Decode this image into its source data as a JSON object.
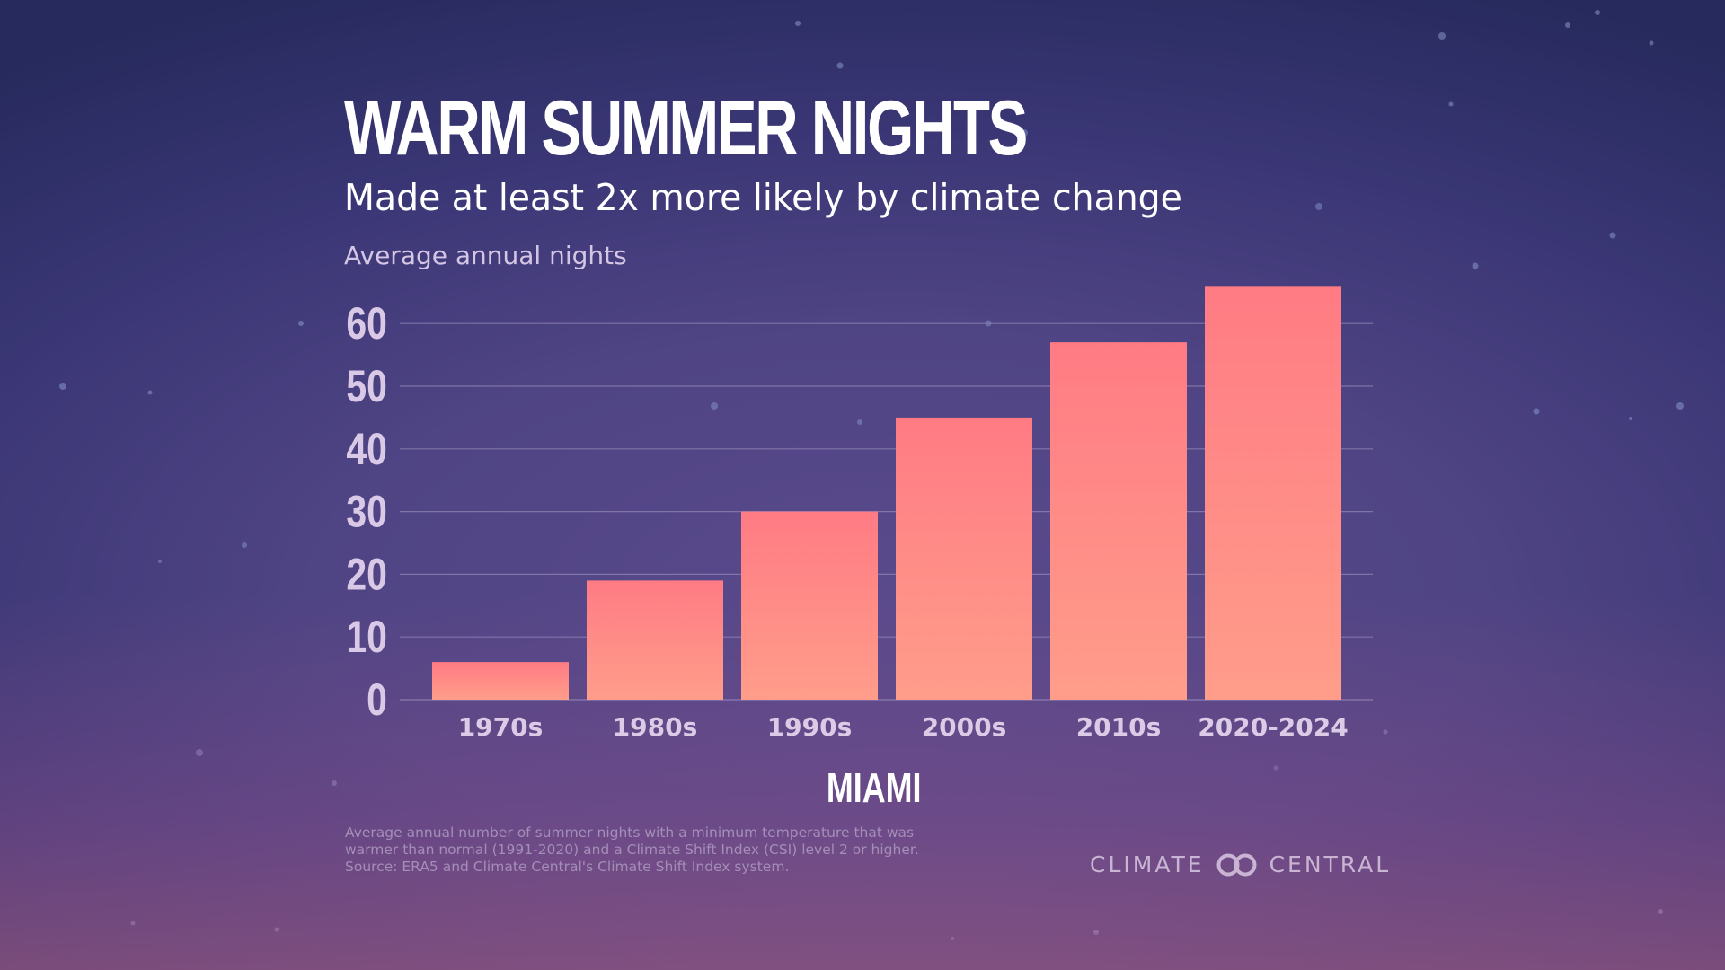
{
  "header": {
    "title": "WARM SUMMER NIGHTS",
    "subtitle": "Made at least 2x more likely by climate change",
    "axis_label": "Average annual nights"
  },
  "chart_data": {
    "type": "bar",
    "title": "WARM SUMMER NIGHTS",
    "subtitle": "Made at least 2x more likely by climate change",
    "ylabel": "Average annual nights",
    "xlabel": "MIAMI",
    "categories": [
      "1970s",
      "1980s",
      "1990s",
      "2000s",
      "2010s",
      "2020-2024"
    ],
    "values": [
      6,
      19,
      30,
      45,
      57,
      66
    ],
    "yticks": [
      0,
      10,
      20,
      30,
      40,
      50,
      60
    ],
    "ylim": [
      0,
      66
    ],
    "grid": true,
    "bar_color_top": "#ff7b84",
    "bar_color_bottom": "#ff9d8a"
  },
  "city": "MIAMI",
  "footnote": {
    "lines": [
      "Average annual number of summer nights with a minimum temperature that was",
      "warmer than normal (1991-2020) and a Climate Shift Index (CSI) level 2 or higher.",
      "Source: ERA5 and Climate Central's Climate Shift Index system."
    ]
  },
  "logo": {
    "left_text": "CLIMATE",
    "right_text": "CENTRAL",
    "icon": "infinity-rings-icon"
  },
  "colors": {
    "tick_label": "#d9c9e6",
    "category_label": "#dccbe6",
    "gridline": "#8a7cb0"
  }
}
